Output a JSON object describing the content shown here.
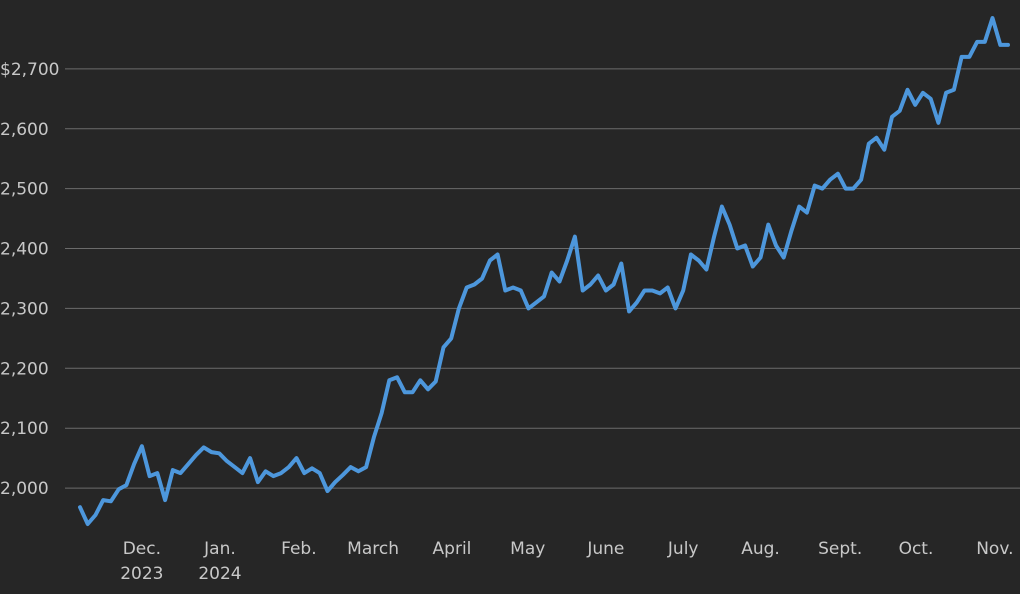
{
  "chart_data": {
    "type": "line",
    "series": [
      {
        "color": "#4d97dc",
        "values": [
          1968,
          1940,
          1955,
          1980,
          1978,
          1998,
          2005,
          2040,
          2070,
          2020,
          2025,
          1980,
          2030,
          2025,
          2040,
          2055,
          2068,
          2060,
          2058,
          2045,
          2035,
          2025,
          2050,
          2010,
          2028,
          2020,
          2025,
          2035,
          2050,
          2025,
          2033,
          2025,
          1995,
          2010,
          2022,
          2035,
          2028,
          2035,
          2085,
          2125,
          2180,
          2185,
          2160,
          2160,
          2180,
          2165,
          2178,
          2235,
          2250,
          2300,
          2335,
          2340,
          2350,
          2380,
          2390,
          2330,
          2335,
          2330,
          2300,
          2310,
          2320,
          2360,
          2345,
          2380,
          2420,
          2330,
          2340,
          2355,
          2330,
          2340,
          2375,
          2295,
          2310,
          2330,
          2330,
          2325,
          2335,
          2300,
          2330,
          2390,
          2380,
          2365,
          2420,
          2470,
          2440,
          2400,
          2405,
          2370,
          2385,
          2440,
          2405,
          2385,
          2430,
          2470,
          2460,
          2505,
          2500,
          2515,
          2525,
          2500,
          2500,
          2515,
          2575,
          2585,
          2565,
          2620,
          2630,
          2665,
          2640,
          2660,
          2650,
          2610,
          2660,
          2665,
          2720,
          2720,
          2745,
          2745,
          2785,
          2740,
          2740
        ]
      }
    ],
    "xlim": [
      0,
      120
    ],
    "xticks": [
      {
        "value": 8,
        "label": "Dec.\n2023"
      },
      {
        "value": 18.1,
        "label": "Jan.\n2024"
      },
      {
        "value": 28.3,
        "label": "Feb."
      },
      {
        "value": 37.9,
        "label": "March"
      },
      {
        "value": 48.1,
        "label": "April"
      },
      {
        "value": 57.9,
        "label": "May"
      },
      {
        "value": 68,
        "label": "June"
      },
      {
        "value": 78,
        "label": "July"
      },
      {
        "value": 88,
        "label": "Aug."
      },
      {
        "value": 98.3,
        "label": "Sept."
      },
      {
        "value": 108.1,
        "label": "Oct."
      },
      {
        "value": 118.3,
        "label": "Nov."
      }
    ],
    "ylim": [
      1930,
      2815
    ],
    "yticks": [
      {
        "value": 2000,
        "label": "2,000"
      },
      {
        "value": 2100,
        "label": "2,100"
      },
      {
        "value": 2200,
        "label": "2,200"
      },
      {
        "value": 2300,
        "label": "2,300"
      },
      {
        "value": 2400,
        "label": "2,400"
      },
      {
        "value": 2500,
        "label": "2,500"
      },
      {
        "value": 2600,
        "label": "2,600"
      },
      {
        "value": 2700,
        "label": "$2,700"
      }
    ],
    "grid": true
  }
}
